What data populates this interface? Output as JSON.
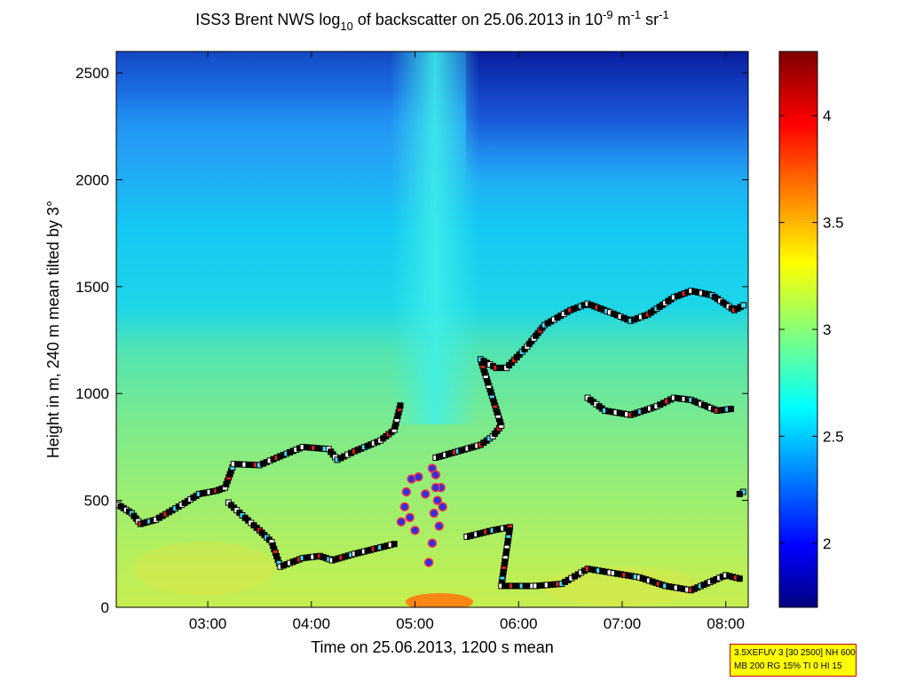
{
  "chart_data": {
    "type": "heatmap",
    "title_parts": [
      "ISS3 Brent NWS log",
      "10",
      " of backscatter on 25.06.2013 in 10",
      "-9",
      " m",
      "-1",
      " sr",
      "-1"
    ],
    "xlabel": "Time on 25.06.2013, 1200 s mean",
    "ylabel": "Height in m, 240 m mean tilted by 3°",
    "x_time_range": [
      "02:07",
      "08:13"
    ],
    "x_ticks": [
      "03:00",
      "04:00",
      "05:00",
      "06:00",
      "07:00",
      "08:00"
    ],
    "y_range": [
      0,
      2600
    ],
    "y_ticks": [
      0,
      500,
      1000,
      1500,
      2000,
      2500
    ],
    "colorbar": {
      "range": [
        1.7,
        4.3
      ],
      "ticks": [
        "2",
        "2.5",
        "3",
        "3.5",
        "4"
      ],
      "colormap": "jet"
    },
    "layers": [
      {
        "name": "boundary-layer",
        "points": [
          [
            "02:08",
            480
          ],
          [
            "02:16",
            440
          ],
          [
            "02:21",
            390
          ],
          [
            "02:30",
            410
          ],
          [
            "02:45",
            480
          ],
          [
            "02:55",
            530
          ],
          [
            "03:05",
            545
          ],
          [
            "03:10",
            560
          ],
          [
            "03:15",
            670
          ],
          [
            "03:30",
            665
          ],
          [
            "03:40",
            700
          ],
          [
            "03:55",
            750
          ],
          [
            "04:10",
            740
          ],
          [
            "04:15",
            690
          ],
          [
            "04:25",
            730
          ],
          [
            "04:40",
            780
          ],
          [
            "04:48",
            830
          ],
          [
            "04:52",
            960
          ]
        ]
      },
      {
        "name": "lower-layer",
        "points": [
          [
            "03:12",
            490
          ],
          [
            "03:20",
            430
          ],
          [
            "03:30",
            360
          ],
          [
            "03:37",
            305
          ],
          [
            "03:42",
            190
          ],
          [
            "03:55",
            230
          ],
          [
            "04:05",
            240
          ],
          [
            "04:12",
            220
          ],
          [
            "04:25",
            250
          ],
          [
            "04:40",
            280
          ],
          [
            "04:50",
            300
          ]
        ]
      },
      {
        "name": "upper-layer-right",
        "points": [
          [
            "05:12",
            700
          ],
          [
            "05:25",
            730
          ],
          [
            "05:38",
            760
          ],
          [
            "05:45",
            800
          ],
          [
            "05:50",
            850
          ],
          [
            "05:38",
            1160
          ],
          [
            "05:47",
            1120
          ],
          [
            "05:53",
            1120
          ],
          [
            "06:05",
            1220
          ],
          [
            "06:15",
            1320
          ],
          [
            "06:30",
            1390
          ],
          [
            "06:40",
            1420
          ],
          [
            "06:53",
            1380
          ],
          [
            "07:05",
            1340
          ],
          [
            "07:15",
            1370
          ],
          [
            "07:30",
            1450
          ],
          [
            "07:40",
            1480
          ],
          [
            "07:52",
            1460
          ],
          [
            "08:05",
            1390
          ],
          [
            "08:12",
            1420
          ]
        ]
      },
      {
        "name": "middle-right-layer",
        "points": [
          [
            "06:40",
            980
          ],
          [
            "06:50",
            920
          ],
          [
            "07:05",
            900
          ],
          [
            "07:20",
            940
          ],
          [
            "07:30",
            980
          ],
          [
            "07:40",
            970
          ],
          [
            "07:55",
            920
          ],
          [
            "08:05",
            930
          ]
        ]
      },
      {
        "name": "low-right-layer",
        "points": [
          [
            "05:30",
            330
          ],
          [
            "05:45",
            360
          ],
          [
            "05:55",
            375
          ],
          [
            "05:50",
            100
          ],
          [
            "06:10",
            100
          ],
          [
            "06:25",
            110
          ],
          [
            "06:40",
            180
          ],
          [
            "06:55",
            160
          ],
          [
            "07:10",
            140
          ],
          [
            "07:25",
            100
          ],
          [
            "07:40",
            80
          ],
          [
            "08:00",
            150
          ],
          [
            "08:10",
            130
          ],
          [
            "08:10",
            540
          ],
          [
            "08:06",
            520
          ]
        ]
      }
    ],
    "cloud_marks": [
      [
        "04:55",
        540
      ],
      [
        "04:58",
        600
      ],
      [
        "05:02",
        610
      ],
      [
        "04:54",
        470
      ],
      [
        "04:57",
        420
      ],
      [
        "05:00",
        360
      ],
      [
        "04:52",
        400
      ],
      [
        "05:06",
        530
      ],
      [
        "05:10",
        650
      ],
      [
        "05:12",
        620
      ],
      [
        "05:15",
        560
      ],
      [
        "05:13",
        500
      ],
      [
        "05:11",
        440
      ],
      [
        "05:14",
        380
      ],
      [
        "05:10",
        300
      ],
      [
        "05:08",
        210
      ],
      [
        "05:16",
        470
      ],
      [
        "05:12",
        560
      ]
    ],
    "info_lines": [
      "3.5XEFUV 3 [30 2500] NH 600",
      "MB 200 RG 15% TI 0 HI 15"
    ]
  }
}
